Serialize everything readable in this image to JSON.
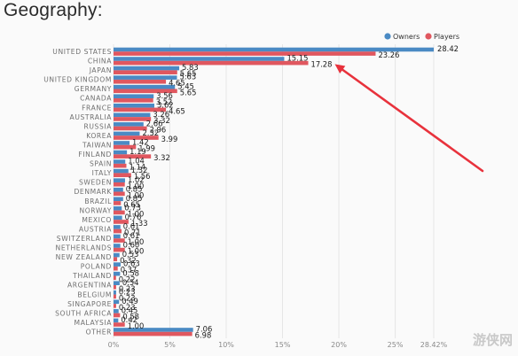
{
  "page": {
    "heading": "Geography:",
    "watermark": "游侠网"
  },
  "colors": {
    "owners": "#4a8ac4",
    "players": "#e0575f",
    "arrow": "#e8323c",
    "grid": "#e6e6e6"
  },
  "chart_data": {
    "type": "bar",
    "orientation": "horizontal",
    "legend_position": "top-right",
    "grid": true,
    "xlim": [
      0,
      28.42
    ],
    "x_ticks": [
      "0%",
      "5%",
      "10%",
      "15%",
      "20%",
      "25%",
      "28.42%"
    ],
    "x_tick_values": [
      0,
      5,
      10,
      15,
      20,
      25,
      28.42
    ],
    "categories": [
      "UNITED STATES",
      "CHINA",
      "JAPAN",
      "UNITED KINGDOM",
      "GERMANY",
      "CANADA",
      "FRANCE",
      "AUSTRALIA",
      "RUSSIA",
      "KOREA",
      "TAIWAN",
      "FINLAND",
      "SPAIN",
      "ITALY",
      "SWEDEN",
      "DENMARK",
      "BRAZIL",
      "NORWAY",
      "MEXICO",
      "AUSTRIA",
      "SWITZERLAND",
      "NETHERLANDS",
      "NEW ZEALAND",
      "POLAND",
      "THAILAND",
      "ARGENTINA",
      "BELGIUM",
      "SINGAPORE",
      "SOUTH AFRICA",
      "MALAYSIA",
      "OTHER"
    ],
    "series": [
      {
        "name": "Owners",
        "values": [
          28.42,
          15.15,
          5.83,
          5.63,
          5.45,
          3.56,
          3.62,
          3.26,
          2.66,
          2.32,
          1.42,
          1.19,
          1.04,
          1.32,
          1.02,
          0.85,
          0.85,
          0.73,
          0.76,
          0.61,
          0.61,
          0.6,
          0.53,
          0.63,
          0.58,
          0.54,
          0.23,
          0.49,
          0.45,
          0.42,
          7.06
        ],
        "labels": [
          "28.42",
          "15.15",
          "5.83",
          "5.63",
          "5.45",
          "3.56",
          "3.62",
          "3.26",
          "2.66",
          "2.32",
          "1.42",
          "1.19",
          "1.04",
          "1.32",
          "1.02",
          "0.85",
          "0.85",
          "0.73",
          "0.76",
          "0.61",
          "0.61",
          "0.60",
          "0.53",
          "0.63",
          "0.58",
          "0.54",
          "0.23",
          "0.49",
          "0.45",
          "0.42",
          "7.06"
        ]
      },
      {
        "name": "Players",
        "values": [
          23.26,
          17.28,
          5.65,
          4.65,
          5.65,
          3.52,
          4.65,
          3.32,
          2.96,
          3.99,
          1.99,
          3.32,
          1.14,
          1.56,
          1.0,
          1.0,
          0.65,
          1.0,
          1.33,
          0.71,
          1.0,
          1.0,
          0.32,
          0.37,
          0.22,
          0.23,
          0.23,
          0.23,
          0.58,
          1.0,
          6.98
        ],
        "labels": [
          "23.26",
          "17.28",
          "5.65",
          "4.65",
          "5.65",
          "3.52",
          "4.65",
          "3.32",
          "2.96",
          "3.99",
          "1.99",
          "3.32",
          "1.14",
          "1.56",
          "1.00",
          "1.00",
          "0.65",
          "1.00",
          "1.33",
          "0.71",
          "1.00",
          "1.00",
          "0.32",
          "0.37",
          "0.22",
          "0.23",
          "0.23",
          "0.23",
          "0.58",
          "1.00",
          "6.98"
        ]
      }
    ],
    "annotation": {
      "type": "arrow",
      "target_category": "CHINA",
      "target_series": "Players"
    }
  }
}
